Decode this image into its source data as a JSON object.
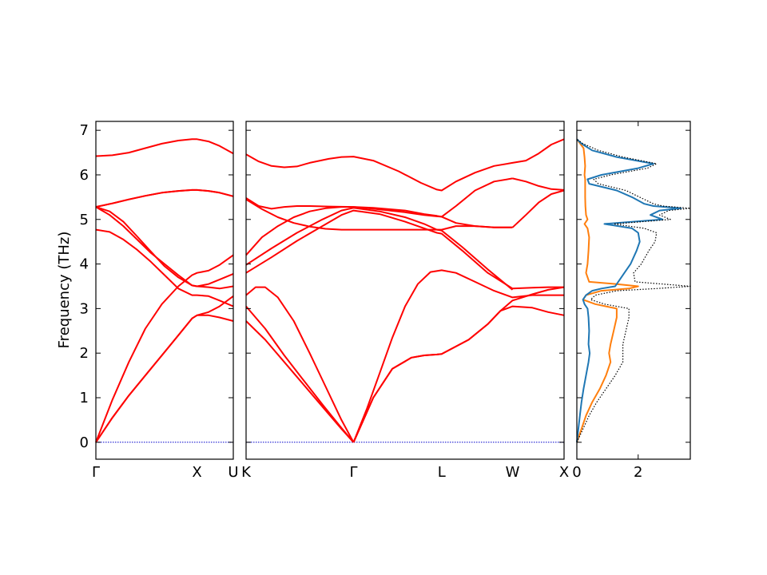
{
  "chart_data": [
    {
      "type": "line",
      "panel": "dispersion-left",
      "ylabel": "Frequency (THz)",
      "ylim": [
        -0.38,
        7.2
      ],
      "yticks": [
        0,
        1,
        2,
        3,
        4,
        5,
        6,
        7
      ],
      "xticks": [
        {
          "label": "Γ",
          "pos": 0.0
        },
        {
          "label": "X",
          "pos": 0.736
        },
        {
          "label": "U",
          "pos": 1.0
        }
      ],
      "line_color": "#ff0000",
      "zero_line_color": "#0000cc",
      "series": [
        {
          "x": [
            0,
            0.12,
            0.24,
            0.36,
            0.48,
            0.6,
            0.7,
            0.736,
            0.82,
            0.9,
            1.0
          ],
          "y": [
            0,
            0.55,
            1.05,
            1.5,
            1.95,
            2.4,
            2.78,
            2.85,
            2.85,
            2.8,
            2.72
          ]
        },
        {
          "x": [
            0,
            0.12,
            0.24,
            0.36,
            0.48,
            0.6,
            0.7,
            0.736,
            0.82,
            0.9,
            1.0
          ],
          "y": [
            0,
            0.55,
            1.05,
            1.5,
            1.95,
            2.4,
            2.78,
            2.85,
            2.92,
            3.05,
            3.28
          ]
        },
        {
          "x": [
            0,
            0.12,
            0.24,
            0.36,
            0.48,
            0.6,
            0.7,
            0.736,
            0.82,
            0.9,
            1.0
          ],
          "y": [
            0,
            0.95,
            1.8,
            2.55,
            3.1,
            3.5,
            3.75,
            3.8,
            3.85,
            3.98,
            4.2
          ]
        },
        {
          "x": [
            0,
            0.1,
            0.2,
            0.3,
            0.4,
            0.5,
            0.6,
            0.7,
            0.736,
            0.82,
            0.9,
            1.0
          ],
          "y": [
            4.77,
            4.72,
            4.55,
            4.32,
            4.05,
            3.75,
            3.45,
            3.3,
            3.3,
            3.28,
            3.18,
            3.05
          ]
        },
        {
          "x": [
            0,
            0.1,
            0.2,
            0.3,
            0.4,
            0.5,
            0.6,
            0.7,
            0.736,
            0.82,
            0.9,
            1.0
          ],
          "y": [
            5.28,
            5.18,
            4.95,
            4.62,
            4.28,
            3.95,
            3.7,
            3.52,
            3.5,
            3.55,
            3.65,
            3.78
          ]
        },
        {
          "x": [
            0,
            0.1,
            0.2,
            0.3,
            0.4,
            0.5,
            0.6,
            0.7,
            0.736,
            0.82,
            0.9,
            1.0
          ],
          "y": [
            5.28,
            5.1,
            4.85,
            4.55,
            4.25,
            4.0,
            3.75,
            3.52,
            3.5,
            3.48,
            3.45,
            3.5
          ]
        },
        {
          "x": [
            0,
            0.12,
            0.24,
            0.36,
            0.48,
            0.6,
            0.7,
            0.736,
            0.82,
            0.9,
            1.0
          ],
          "y": [
            5.28,
            5.36,
            5.45,
            5.53,
            5.6,
            5.64,
            5.66,
            5.66,
            5.64,
            5.6,
            5.52
          ]
        },
        {
          "x": [
            0,
            0.12,
            0.24,
            0.36,
            0.48,
            0.6,
            0.7,
            0.736,
            0.82,
            0.9,
            1.0
          ],
          "y": [
            5.28,
            5.36,
            5.45,
            5.53,
            5.6,
            5.64,
            5.66,
            5.66,
            5.64,
            5.6,
            5.52
          ]
        },
        {
          "x": [
            0,
            0.12,
            0.24,
            0.36,
            0.48,
            0.6,
            0.7,
            0.736,
            0.82,
            0.9,
            1.0
          ],
          "y": [
            6.42,
            6.44,
            6.5,
            6.6,
            6.7,
            6.77,
            6.8,
            6.8,
            6.75,
            6.65,
            6.48
          ]
        }
      ]
    },
    {
      "type": "line",
      "panel": "dispersion-main",
      "ylim": [
        -0.38,
        7.2
      ],
      "xticks": [
        {
          "label": "K",
          "pos": 0.0
        },
        {
          "label": "Γ",
          "pos": 0.338
        },
        {
          "label": "L",
          "pos": 0.615
        },
        {
          "label": "W",
          "pos": 0.838
        },
        {
          "label": "X",
          "pos": 1.0
        }
      ],
      "line_color": "#ff0000",
      "zero_line_color": "#0000cc",
      "series": [
        {
          "x": [
            0,
            0.06,
            0.12,
            0.18,
            0.24,
            0.3,
            0.338
          ],
          "y": [
            2.72,
            2.3,
            1.8,
            1.3,
            0.8,
            0.3,
            0
          ]
        },
        {
          "x": [
            0,
            0.06,
            0.12,
            0.18,
            0.24,
            0.3,
            0.338
          ],
          "y": [
            3.05,
            2.55,
            1.95,
            1.4,
            0.85,
            0.32,
            0
          ]
        },
        {
          "x": [
            0,
            0.03,
            0.06,
            0.1,
            0.15,
            0.2,
            0.25,
            0.3,
            0.338
          ],
          "y": [
            3.3,
            3.48,
            3.48,
            3.25,
            2.72,
            2.0,
            1.25,
            0.5,
            0
          ]
        },
        {
          "x": [
            0.338,
            0.4,
            0.46,
            0.52,
            0.56,
            0.6,
            0.615,
            0.7,
            0.76,
            0.8,
            0.838,
            0.9,
            0.95,
            1.0
          ],
          "y": [
            0,
            1.0,
            1.65,
            1.9,
            1.95,
            1.97,
            1.98,
            2.3,
            2.65,
            2.95,
            3.05,
            3.02,
            2.92,
            2.85
          ]
        },
        {
          "x": [
            0.338,
            0.4,
            0.46,
            0.52,
            0.56,
            0.6,
            0.615,
            0.7,
            0.76,
            0.8,
            0.838,
            0.9,
            0.95,
            1.0
          ],
          "y": [
            0,
            1.0,
            1.65,
            1.9,
            1.95,
            1.97,
            1.98,
            2.3,
            2.65,
            2.95,
            3.18,
            3.32,
            3.42,
            3.48
          ]
        },
        {
          "x": [
            0.338,
            0.38,
            0.42,
            0.46,
            0.5,
            0.54,
            0.58,
            0.615,
            0.66,
            0.72,
            0.78,
            0.838,
            0.9,
            0.95,
            1.0
          ],
          "y": [
            0,
            0.75,
            1.55,
            2.35,
            3.05,
            3.55,
            3.82,
            3.86,
            3.8,
            3.6,
            3.4,
            3.25,
            3.3,
            3.3,
            3.3
          ]
        },
        {
          "x": [
            0,
            0.08,
            0.16,
            0.24,
            0.3,
            0.338,
            0.42,
            0.5,
            0.56,
            0.6,
            0.615,
            0.68,
            0.76,
            0.838,
            0.9,
            0.95,
            1.0
          ],
          "y": [
            3.8,
            4.15,
            4.52,
            4.85,
            5.1,
            5.2,
            5.12,
            4.95,
            4.8,
            4.7,
            4.68,
            4.3,
            3.8,
            3.45,
            3.47,
            3.48,
            3.48
          ]
        },
        {
          "x": [
            0,
            0.08,
            0.16,
            0.24,
            0.3,
            0.338,
            0.42,
            0.5,
            0.56,
            0.6,
            0.615,
            0.68,
            0.76,
            0.838
          ],
          "y": [
            3.98,
            4.35,
            4.7,
            5.0,
            5.2,
            5.26,
            5.18,
            5.05,
            4.9,
            4.77,
            4.75,
            4.38,
            3.88,
            3.42
          ]
        },
        {
          "x": [
            0,
            0.05,
            0.1,
            0.15,
            0.2,
            0.25,
            0.3,
            0.338,
            0.4,
            0.5,
            0.56,
            0.6,
            0.615,
            0.66,
            0.72,
            0.78,
            0.838
          ],
          "y": [
            4.2,
            4.6,
            4.85,
            5.05,
            5.18,
            5.25,
            5.28,
            5.28,
            5.26,
            5.2,
            5.12,
            5.08,
            5.06,
            4.92,
            4.85,
            4.82,
            4.82
          ]
        },
        {
          "x": [
            0,
            0.05,
            0.1,
            0.15,
            0.2,
            0.25,
            0.3,
            0.338,
            0.4,
            0.5,
            0.56,
            0.6,
            0.615,
            0.66,
            0.72,
            0.78,
            0.838
          ],
          "y": [
            5.45,
            5.23,
            5.05,
            4.92,
            4.84,
            4.79,
            4.77,
            4.77,
            4.77,
            4.77,
            4.77,
            4.77,
            4.77,
            4.85,
            4.85,
            4.82,
            4.82
          ]
        },
        {
          "x": [
            0,
            0.04,
            0.08,
            0.12,
            0.16,
            0.2,
            0.26,
            0.338,
            0.4,
            0.5,
            0.56,
            0.6,
            0.615,
            0.66,
            0.72,
            0.78,
            0.838
          ],
          "y": [
            5.48,
            5.3,
            5.24,
            5.28,
            5.3,
            5.3,
            5.29,
            5.28,
            5.24,
            5.16,
            5.1,
            5.07,
            5.06,
            5.3,
            5.65,
            5.85,
            5.92
          ]
        },
        {
          "x": [
            0.838,
            0.88,
            0.92,
            0.96,
            1.0
          ],
          "y": [
            4.82,
            5.1,
            5.38,
            5.57,
            5.65
          ]
        },
        {
          "x": [
            0.838,
            0.88,
            0.92,
            0.96,
            1.0
          ],
          "y": [
            5.92,
            5.85,
            5.75,
            5.68,
            5.66
          ]
        },
        {
          "x": [
            0,
            0.04,
            0.08,
            0.12,
            0.16,
            0.2,
            0.26,
            0.3,
            0.338,
            0.4,
            0.48,
            0.55,
            0.6,
            0.615,
            0.66,
            0.72,
            0.78,
            0.838,
            0.88,
            0.92,
            0.96,
            1.0
          ],
          "y": [
            6.46,
            6.3,
            6.2,
            6.17,
            6.19,
            6.27,
            6.36,
            6.4,
            6.41,
            6.32,
            6.08,
            5.82,
            5.67,
            5.65,
            5.85,
            6.05,
            6.2,
            6.27,
            6.32,
            6.48,
            6.68,
            6.8
          ]
        }
      ]
    },
    {
      "type": "line",
      "panel": "dos",
      "ylim": [
        -0.38,
        7.2
      ],
      "xlim": [
        0,
        3.7
      ],
      "xticks": [
        {
          "label": "0",
          "pos": 0
        },
        {
          "label": "2",
          "pos": 2
        }
      ],
      "series": [
        {
          "name": "",
          "color": "#ff7f0e",
          "style": "solid",
          "y": [
            0,
            0.3,
            0.6,
            0.9,
            1.2,
            1.5,
            1.8,
            2.0,
            2.2,
            2.5,
            2.8,
            3.0,
            3.1,
            3.2,
            3.3,
            3.4,
            3.45,
            3.5,
            3.55,
            3.6,
            3.8,
            4.0,
            4.3,
            4.6,
            4.8,
            4.9,
            5.0,
            5.1,
            5.3,
            5.5,
            5.7,
            5.9,
            6.0,
            6.2,
            6.4,
            6.6,
            6.8
          ],
          "x": [
            0,
            0.15,
            0.3,
            0.5,
            0.75,
            0.95,
            1.1,
            1.05,
            1.1,
            1.2,
            1.3,
            1.3,
            0.6,
            0.2,
            0.3,
            0.8,
            1.7,
            2.0,
            1.3,
            0.4,
            0.3,
            0.35,
            0.38,
            0.4,
            0.35,
            0.25,
            0.35,
            0.3,
            0.28,
            0.27,
            0.27,
            0.27,
            0.25,
            0.27,
            0.25,
            0.22,
            0.0
          ]
        },
        {
          "name": "",
          "color": "#1f77b4",
          "style": "solid",
          "y": [
            0,
            0.3,
            0.6,
            0.9,
            1.2,
            1.5,
            1.8,
            2.0,
            2.2,
            2.5,
            2.8,
            3.0,
            3.1,
            3.2,
            3.3,
            3.4,
            3.45,
            3.5,
            3.6,
            3.8,
            4.0,
            4.3,
            4.5,
            4.7,
            4.8,
            4.9,
            5.0,
            5.1,
            5.2,
            5.25,
            5.3,
            5.35,
            5.5,
            5.65,
            5.8,
            5.9,
            6.0,
            6.15,
            6.25,
            6.4,
            6.55,
            6.7,
            6.8
          ],
          "x": [
            0,
            0.05,
            0.1,
            0.15,
            0.22,
            0.3,
            0.38,
            0.42,
            0.38,
            0.4,
            0.38,
            0.35,
            0.25,
            0.2,
            0.3,
            0.5,
            0.8,
            1.25,
            1.35,
            1.55,
            1.75,
            1.95,
            2.05,
            2.0,
            1.8,
            0.9,
            2.8,
            2.4,
            2.7,
            3.4,
            2.5,
            2.2,
            1.8,
            1.3,
            0.4,
            0.35,
            0.8,
            2.0,
            2.5,
            1.3,
            0.5,
            0.15,
            0.0
          ]
        },
        {
          "name": "",
          "color": "#000000",
          "style": "dotted",
          "y": [
            0,
            0.3,
            0.6,
            0.9,
            1.2,
            1.5,
            1.8,
            2.0,
            2.2,
            2.5,
            2.8,
            3.0,
            3.1,
            3.2,
            3.3,
            3.4,
            3.45,
            3.5,
            3.55,
            3.6,
            3.8,
            4.0,
            4.3,
            4.5,
            4.7,
            4.8,
            4.9,
            5.0,
            5.1,
            5.2,
            5.25,
            5.3,
            5.35,
            5.5,
            5.65,
            5.8,
            5.9,
            6.0,
            6.15,
            6.25,
            6.4,
            6.55,
            6.7,
            6.8
          ],
          "x": [
            0,
            0.2,
            0.4,
            0.65,
            0.95,
            1.25,
            1.5,
            1.5,
            1.5,
            1.6,
            1.7,
            1.7,
            0.9,
            0.45,
            0.6,
            1.3,
            2.6,
            3.7,
            2.8,
            1.9,
            1.85,
            2.1,
            2.35,
            2.55,
            2.6,
            2.2,
            1.2,
            3.05,
            2.7,
            3.0,
            3.7,
            2.8,
            2.5,
            2.05,
            1.6,
            0.7,
            0.55,
            1.1,
            2.3,
            2.6,
            1.5,
            0.7,
            0.2,
            0.0
          ]
        }
      ]
    }
  ]
}
